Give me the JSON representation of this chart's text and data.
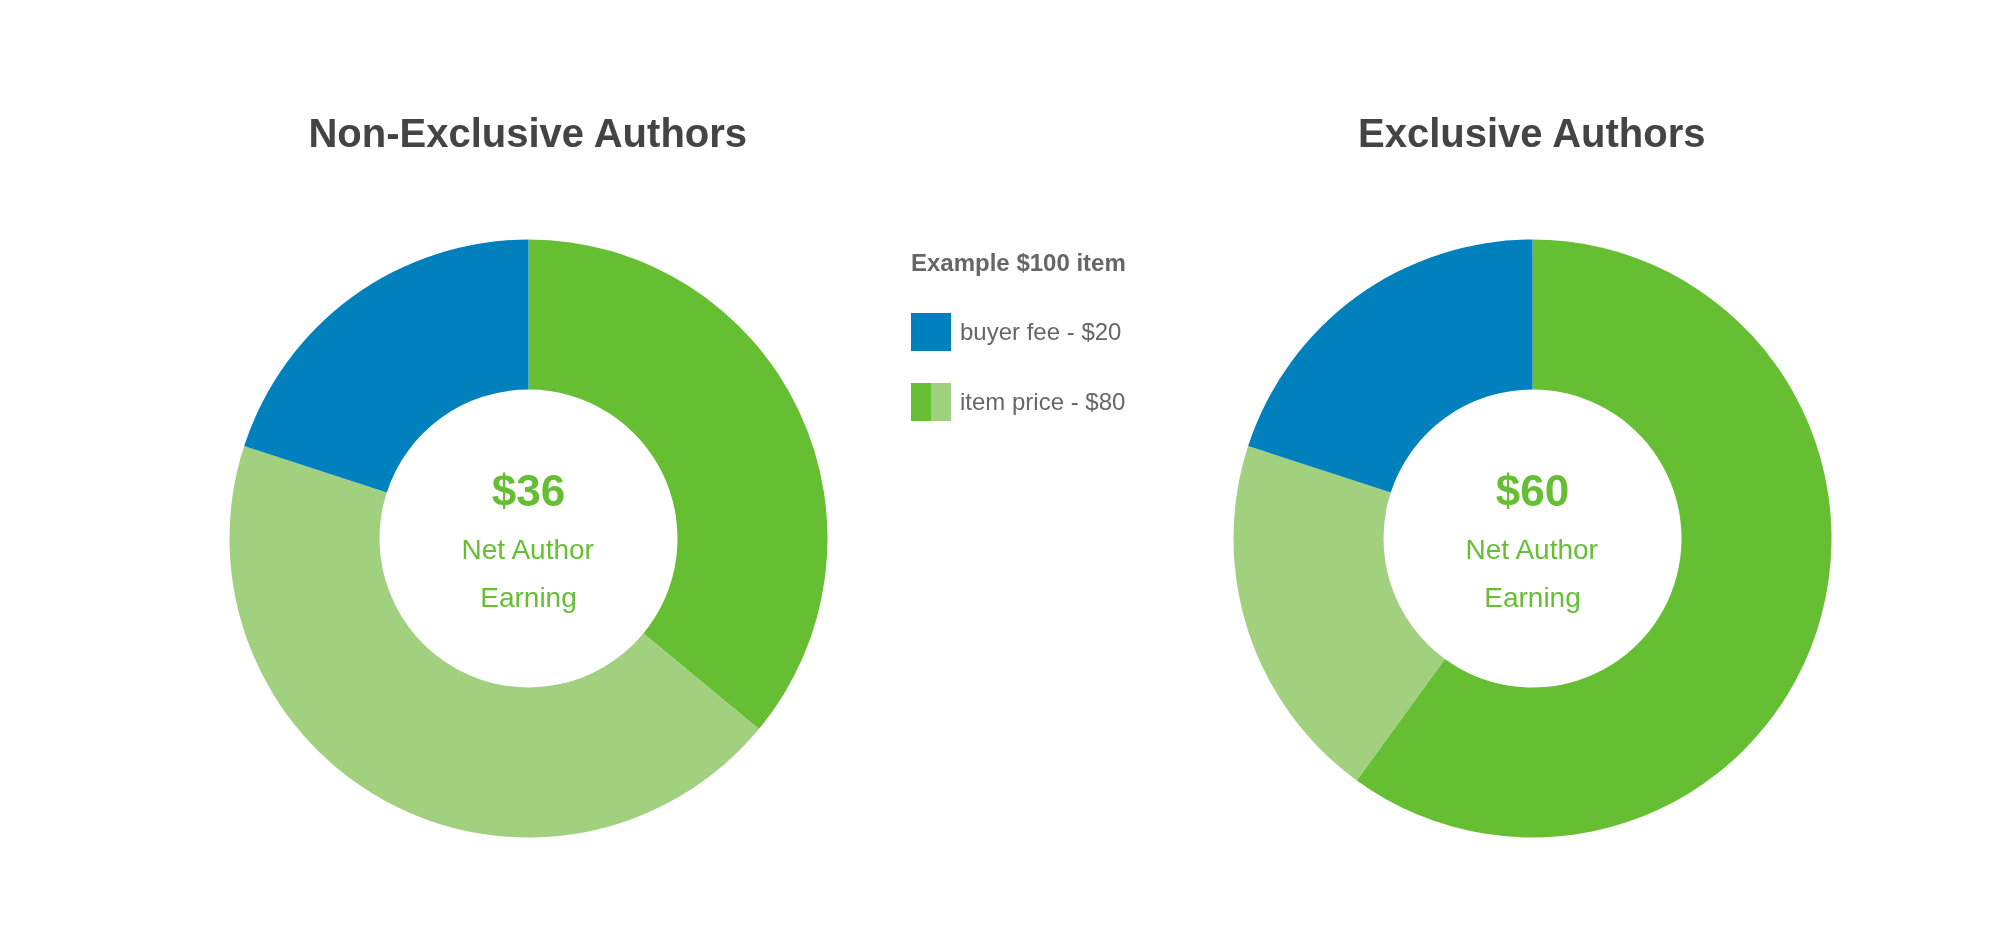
{
  "chart_data": [
    {
      "type": "donut",
      "title": "Non-Exclusive Authors",
      "categories": [
        null,
        null,
        null
      ],
      "values": [
        36,
        44,
        20
      ],
      "colors": [
        "#66bf33",
        "#a1d07f",
        "#0081bd"
      ],
      "annotations": [
        "$36",
        "Net Author Earning"
      ]
    },
    {
      "type": "other",
      "title": "Example $100 item",
      "annotations": [
        "buyer fee - $20",
        "item price - $80"
      ],
      "colors": [
        "#0081bd",
        "#66bf33",
        "#a1d07f"
      ]
    },
    {
      "type": "donut",
      "title": "Exclusive Authors",
      "categories": [
        null,
        null,
        null
      ],
      "values": [
        60,
        20,
        20
      ],
      "colors": [
        "#66bf33",
        "#a1d07f",
        "#0081bd"
      ],
      "annotations": [
        "$60",
        "Net Author Earning"
      ]
    }
  ]
}
